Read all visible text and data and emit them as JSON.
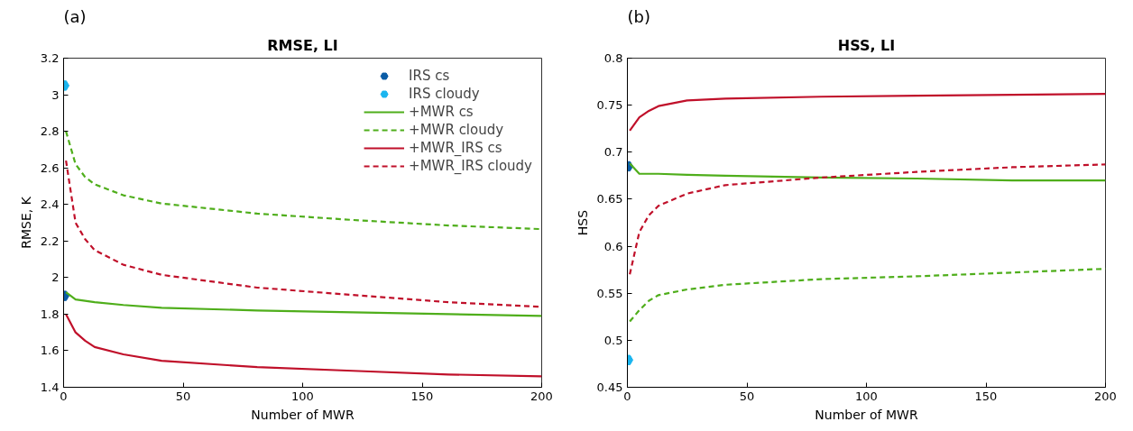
{
  "chart_data": [
    {
      "type": "line",
      "title": "RMSE, LI",
      "xlabel": "Number of MWR",
      "ylabel": "RMSE, K",
      "annotations": [
        "(a)"
      ],
      "xlim": [
        0,
        200
      ],
      "xticks": [
        0,
        50,
        100,
        150,
        200
      ],
      "ylim": [
        1.4,
        3.2
      ],
      "yticks": [
        1.4,
        1.6,
        1.8,
        2,
        2.2,
        2.4,
        2.6,
        2.8,
        3,
        3.2
      ],
      "legend": "top right",
      "series": [
        {
          "name": "IRS cs",
          "type": "scatter",
          "marker": "star",
          "color": "#0a5ca6",
          "x": [
            0
          ],
          "values": [
            1.9
          ]
        },
        {
          "name": "IRS cloudy",
          "type": "scatter",
          "marker": "star",
          "color": "#1ab5ef",
          "x": [
            0
          ],
          "values": [
            3.05
          ]
        },
        {
          "name": "+MWR cs",
          "line_style": "solid",
          "color": "#4fae1b",
          "x": [
            1,
            5,
            13,
            25,
            41,
            81,
            121,
            161,
            200
          ],
          "values": [
            1.92,
            1.88,
            1.865,
            1.85,
            1.835,
            1.82,
            1.81,
            1.8,
            1.79
          ]
        },
        {
          "name": "+MWR cloudy",
          "line_style": "dashed",
          "color": "#4fae1b",
          "x": [
            1,
            5,
            9,
            13,
            25,
            41,
            81,
            121,
            161,
            200
          ],
          "values": [
            2.8,
            2.62,
            2.55,
            2.51,
            2.45,
            2.405,
            2.35,
            2.315,
            2.285,
            2.265
          ]
        },
        {
          "name": "+MWR_IRS cs",
          "line_style": "solid",
          "color": "#c0102a",
          "x": [
            1,
            5,
            9,
            13,
            25,
            41,
            81,
            121,
            161,
            200
          ],
          "values": [
            1.8,
            1.7,
            1.655,
            1.62,
            1.58,
            1.545,
            1.51,
            1.49,
            1.47,
            1.46
          ]
        },
        {
          "name": "+MWR_IRS cloudy",
          "line_style": "dashed",
          "color": "#c0102a",
          "x": [
            1,
            5,
            9,
            13,
            25,
            41,
            81,
            121,
            161,
            200
          ],
          "values": [
            2.64,
            2.3,
            2.21,
            2.15,
            2.07,
            2.015,
            1.945,
            1.905,
            1.865,
            1.84
          ]
        }
      ]
    },
    {
      "type": "line",
      "title": "HSS, LI",
      "xlabel": "Number of MWR",
      "ylabel": "HSS",
      "annotations": [
        "(b)"
      ],
      "xlim": [
        0,
        200
      ],
      "xticks": [
        0,
        50,
        100,
        150,
        200
      ],
      "ylim": [
        0.45,
        0.8
      ],
      "yticks": [
        0.45,
        0.5,
        0.55,
        0.6,
        0.65,
        0.7,
        0.75,
        0.8
      ],
      "series": [
        {
          "type": "scatter",
          "marker": "star",
          "color": "#0a5ca6",
          "x": [
            0
          ],
          "values": [
            0.685
          ]
        },
        {
          "type": "scatter",
          "marker": "star",
          "color": "#1ab5ef",
          "x": [
            0
          ],
          "values": [
            0.479
          ]
        },
        {
          "line_style": "solid",
          "color": "#4fae1b",
          "x": [
            1,
            5,
            13,
            25,
            41,
            81,
            121,
            161,
            200
          ],
          "values": [
            0.688,
            0.677,
            0.677,
            0.676,
            0.675,
            0.673,
            0.672,
            0.67,
            0.67
          ]
        },
        {
          "line_style": "dashed",
          "color": "#4fae1b",
          "x": [
            1,
            5,
            9,
            13,
            25,
            41,
            81,
            121,
            161,
            200
          ],
          "values": [
            0.52,
            0.532,
            0.542,
            0.548,
            0.554,
            0.559,
            0.565,
            0.568,
            0.572,
            0.576
          ]
        },
        {
          "line_style": "solid",
          "color": "#c0102a",
          "x": [
            1,
            5,
            9,
            13,
            25,
            41,
            81,
            121,
            161,
            200
          ],
          "values": [
            0.723,
            0.737,
            0.744,
            0.749,
            0.755,
            0.757,
            0.759,
            0.76,
            0.761,
            0.762
          ]
        },
        {
          "line_style": "dashed",
          "color": "#c0102a",
          "x": [
            1,
            5,
            9,
            13,
            25,
            41,
            81,
            121,
            161,
            200
          ],
          "values": [
            0.57,
            0.615,
            0.633,
            0.643,
            0.656,
            0.665,
            0.673,
            0.679,
            0.684,
            0.687
          ]
        }
      ]
    }
  ]
}
